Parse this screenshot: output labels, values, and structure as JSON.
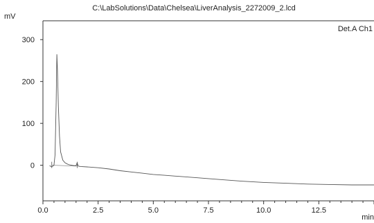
{
  "chart_data": {
    "type": "line",
    "title": "C:\\LabSolutions\\Data\\Chelsea\\LiverAnalysis_2272009_2.lcd",
    "ylabel": "mV",
    "xlabel": "min",
    "legend": "Det.A Ch1",
    "xlim": [
      0,
      15
    ],
    "ylim": [
      -85,
      345
    ],
    "xticks": [
      "0.0",
      "2.5",
      "5.0",
      "7.5",
      "10.0",
      "12.5"
    ],
    "xtick_values": [
      0,
      2.5,
      5.0,
      7.5,
      10.0,
      12.5
    ],
    "yticks": [
      "0",
      "100",
      "200",
      "300"
    ],
    "ytick_values": [
      0,
      100,
      200,
      300
    ],
    "series": [
      {
        "color": "#555555",
        "x": [
          0.3,
          0.4,
          0.5,
          0.55,
          0.6,
          0.63,
          0.66,
          0.7,
          0.75,
          0.8,
          0.9,
          1.0,
          1.1,
          1.2,
          1.3,
          1.4,
          1.5,
          1.55,
          1.6,
          1.7,
          2.0,
          2.5,
          3.0,
          3.5,
          4.0,
          4.5,
          5.0,
          5.5,
          6.0,
          7.0,
          8.0,
          9.0,
          10.0,
          11.0,
          12.0,
          13.0,
          14.0,
          15.0
        ],
        "y": [
          -1,
          -4,
          0,
          25,
          150,
          265,
          225,
          140,
          70,
          32,
          12,
          6,
          3,
          1,
          0,
          -1,
          -1,
          6,
          -2,
          -3,
          -4,
          -6,
          -9,
          -13,
          -16,
          -19,
          -22,
          -24,
          -26,
          -30,
          -34,
          -38,
          -41,
          -43,
          -45,
          -46,
          -47,
          -47
        ]
      }
    ]
  }
}
